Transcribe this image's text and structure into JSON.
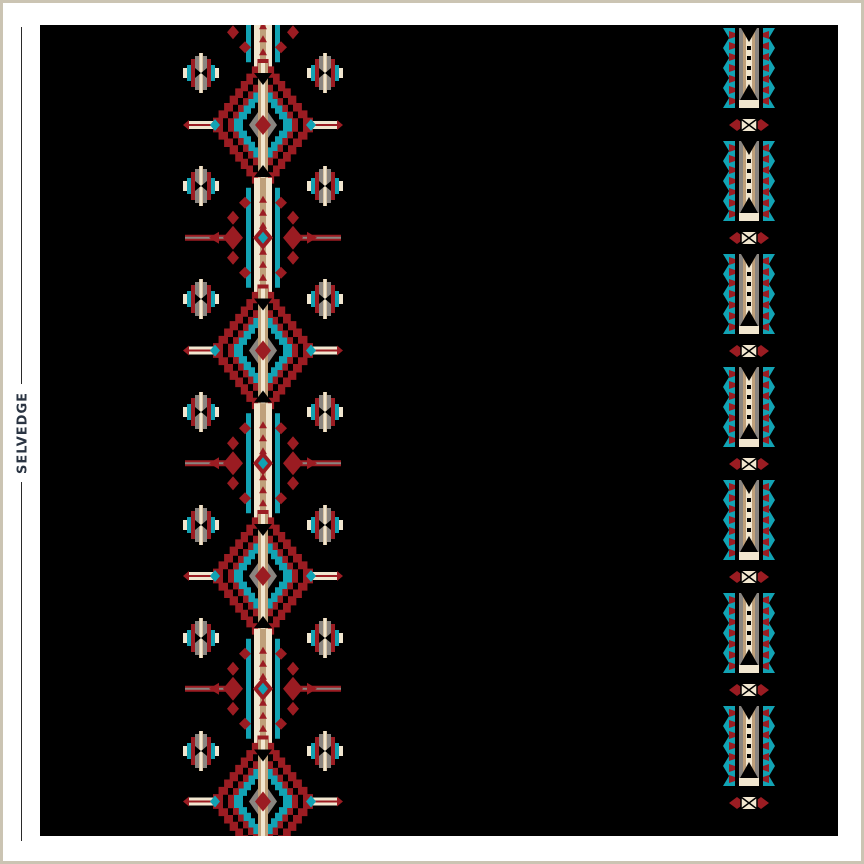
{
  "selvedge_label": "SELVEDGE",
  "colors": {
    "background": "#000000",
    "red": "#9b1c22",
    "teal": "#12a3b4",
    "cream": "#f1e6cf",
    "tan": "#bfa07a",
    "gray": "#8a8580",
    "border": "#cbc4b3"
  },
  "pattern": {
    "left_column_motifs": [
      "stepped-diamond",
      "cross-arrow",
      "small-striped-oval"
    ],
    "right_column_motifs": [
      "feathered-panel",
      "bow-tie"
    ]
  }
}
